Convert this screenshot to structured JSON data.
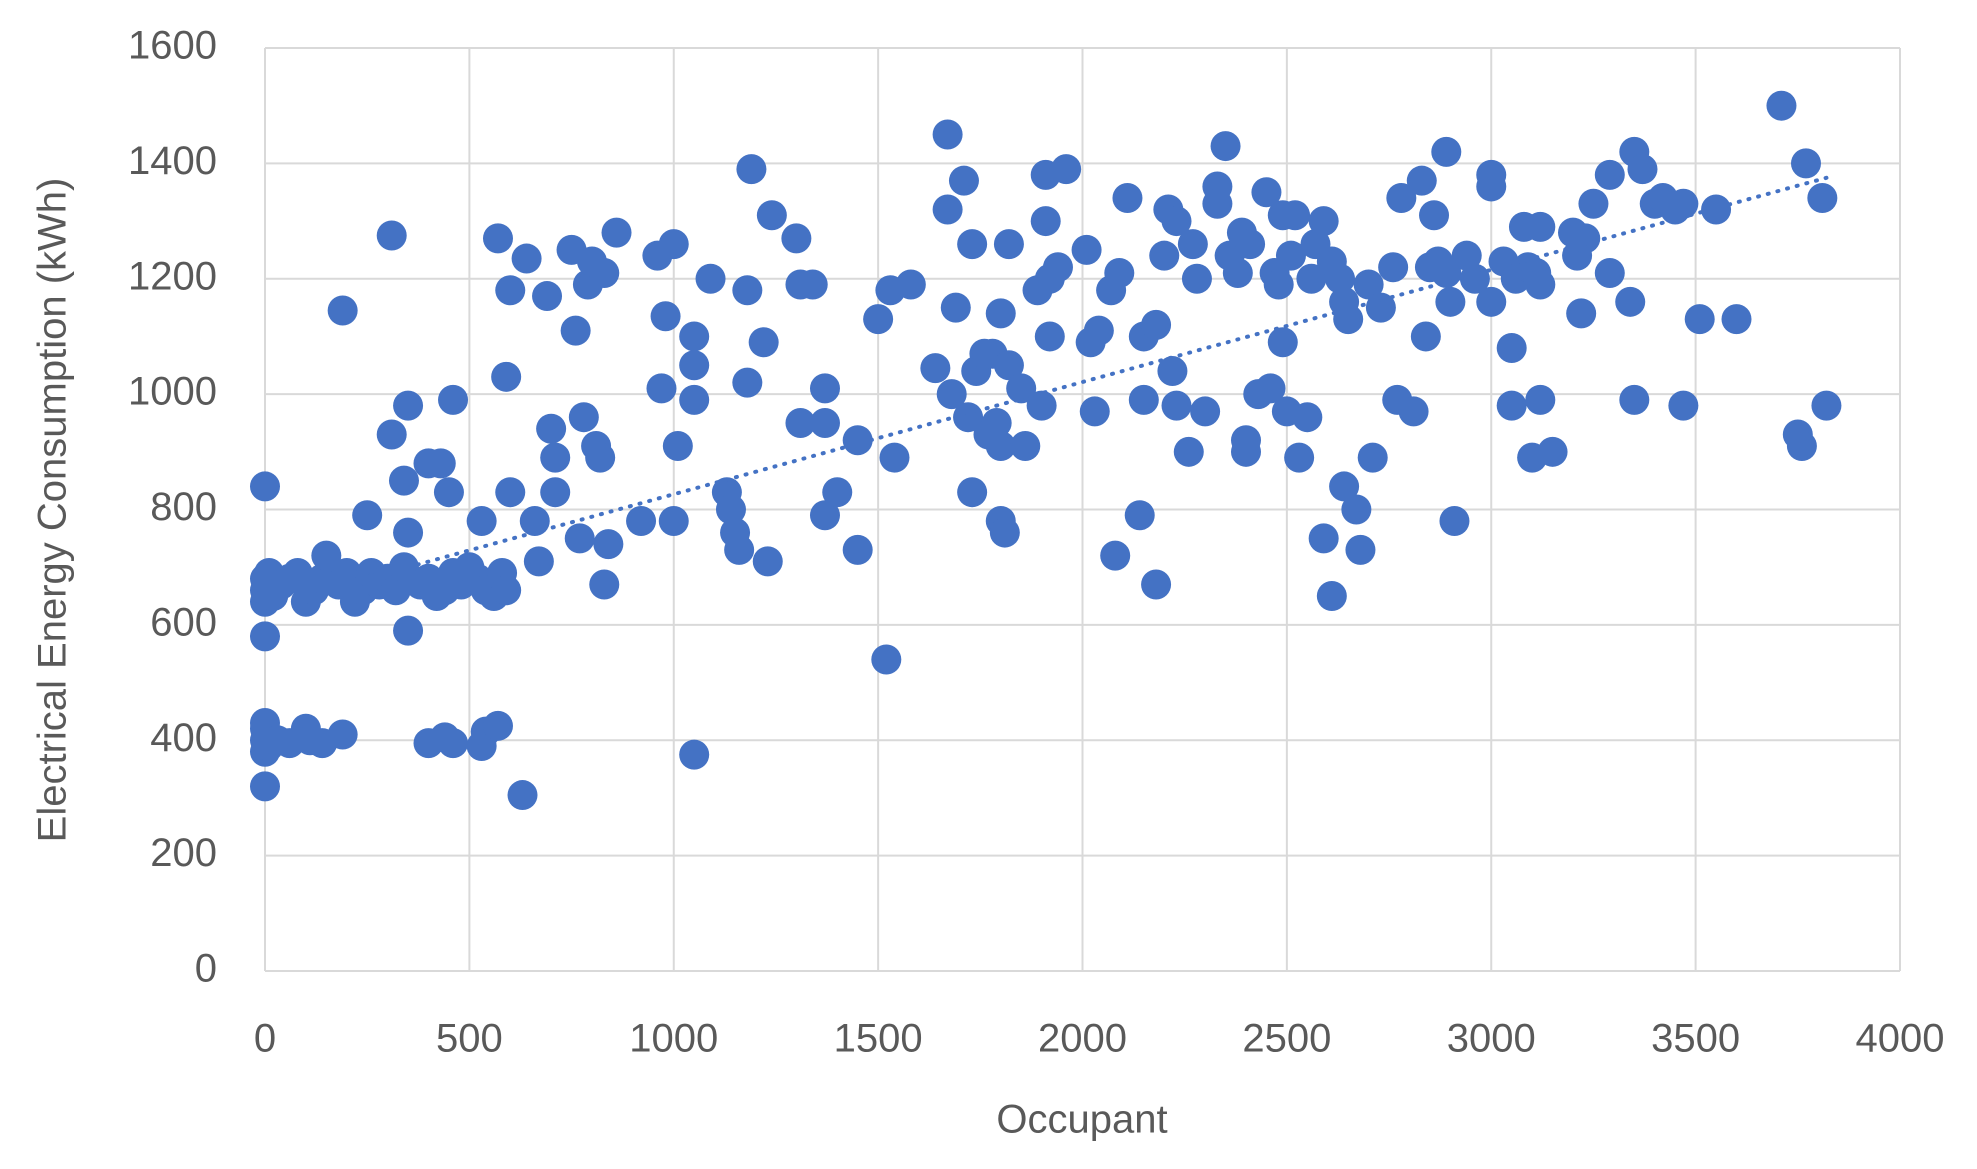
{
  "chart_data": {
    "type": "scatter",
    "x_label": "Occupant",
    "y_label": "Electrical Energy Consumption (kWh)",
    "color": "#4472c4",
    "grid": true,
    "xlim": [
      0,
      4000
    ],
    "xticks": [
      0,
      500,
      1000,
      1500,
      2000,
      2500,
      3000,
      3500,
      4000
    ],
    "ylim": [
      0,
      1600
    ],
    "yticks": [
      0,
      200,
      400,
      600,
      800,
      1000,
      1200,
      1400,
      1600
    ],
    "x": [
      0,
      0,
      0,
      0,
      0,
      10,
      30,
      60,
      100,
      110,
      140,
      190,
      400,
      440,
      460,
      530,
      540,
      570,
      630,
      1050,
      0,
      0,
      0,
      0,
      10,
      20,
      40,
      60,
      80,
      100,
      120,
      140,
      150,
      180,
      200,
      220,
      240,
      260,
      280,
      300,
      320,
      340,
      350,
      380,
      400,
      420,
      440,
      460,
      480,
      500,
      520,
      540,
      560,
      580,
      590,
      0,
      190,
      310,
      250,
      310,
      340,
      350,
      350,
      400,
      430,
      450,
      460,
      530,
      570,
      590,
      600,
      600,
      640,
      660,
      670,
      690,
      700,
      710,
      710,
      750,
      760,
      770,
      780,
      790,
      800,
      810,
      820,
      830,
      830,
      840,
      860,
      920,
      960,
      970,
      980,
      1000,
      1000,
      1010,
      1050,
      1050,
      1050,
      1090,
      1130,
      1140,
      1150,
      1160,
      1180,
      1180,
      1190,
      1220,
      1230,
      1240,
      1300,
      1310,
      1310,
      1340,
      1370,
      1370,
      1370,
      1400,
      1450,
      1450,
      1500,
      1520,
      1530,
      1540,
      1580,
      1640,
      1670,
      1670,
      1680,
      1690,
      1710,
      1720,
      1730,
      1730,
      1740,
      1760,
      1770,
      1780,
      1790,
      1800,
      1800,
      1800,
      1810,
      1820,
      1820,
      1850,
      1860,
      1890,
      1900,
      1910,
      1910,
      1920,
      1920,
      1940,
      1960,
      2010,
      2020,
      2030,
      2040,
      2070,
      2080,
      2090,
      2110,
      2140,
      2150,
      2150,
      2180,
      2180,
      2200,
      2210,
      2220,
      2230,
      2230,
      2260,
      2270,
      2280,
      2300,
      2330,
      2330,
      2350,
      2360,
      2380,
      2390,
      2400,
      2400,
      2410,
      2430,
      2450,
      2460,
      2470,
      2480,
      2490,
      2490,
      2500,
      2510,
      2520,
      2530,
      2550,
      2560,
      2570,
      2590,
      2590,
      2610,
      2610,
      2630,
      2640,
      2640,
      2650,
      2670,
      2680,
      2700,
      2710,
      2730,
      2760,
      2770,
      2780,
      2810,
      2830,
      2840,
      2850,
      2860,
      2870,
      2890,
      2890,
      2900,
      2910,
      2940,
      2960,
      3000,
      3000,
      3000,
      3030,
      3050,
      3050,
      3060,
      3080,
      3090,
      3100,
      3110,
      3120,
      3120,
      3120,
      3150,
      3200,
      3210,
      3220,
      3230,
      3250,
      3290,
      3290,
      3340,
      3350,
      3350,
      3370,
      3400,
      3420,
      3450,
      3470,
      3470,
      3510,
      3550,
      3600,
      3710,
      3750,
      3760,
      3770,
      3810,
      3820
    ],
    "values": [
      320,
      380,
      400,
      420,
      430,
      390,
      400,
      395,
      420,
      400,
      395,
      410,
      395,
      405,
      395,
      390,
      415,
      425,
      305,
      375,
      580,
      640,
      660,
      680,
      690,
      650,
      670,
      680,
      690,
      640,
      660,
      680,
      720,
      670,
      690,
      640,
      660,
      690,
      670,
      680,
      660,
      700,
      590,
      670,
      680,
      650,
      660,
      690,
      670,
      700,
      680,
      660,
      650,
      690,
      660,
      840,
      1145,
      1275,
      790,
      930,
      850,
      980,
      760,
      880,
      880,
      830,
      990,
      780,
      1270,
      1030,
      1180,
      830,
      1235,
      780,
      710,
      1170,
      940,
      890,
      830,
      1250,
      1110,
      750,
      960,
      1190,
      1230,
      910,
      890,
      1210,
      670,
      740,
      1280,
      780,
      1240,
      1010,
      1135,
      1260,
      780,
      910,
      1100,
      1050,
      990,
      1200,
      830,
      800,
      760,
      730,
      1180,
      1020,
      1390,
      1090,
      710,
      1310,
      1270,
      1190,
      950,
      1190,
      950,
      1010,
      790,
      830,
      920,
      730,
      1130,
      540,
      1180,
      890,
      1190,
      1045,
      1450,
      1320,
      1000,
      1150,
      1370,
      960,
      1260,
      830,
      1040,
      1070,
      930,
      1070,
      950,
      1140,
      910,
      780,
      760,
      1260,
      1050,
      1010,
      910,
      1180,
      980,
      1380,
      1300,
      1200,
      1100,
      1220,
      1390,
      1250,
      1090,
      970,
      1110,
      1180,
      720,
      1210,
      1340,
      790,
      990,
      1100,
      1120,
      670,
      1240,
      1320,
      1040,
      980,
      1300,
      900,
      1260,
      1200,
      970,
      1360,
      1330,
      1430,
      1240,
      1210,
      1280,
      920,
      900,
      1260,
      1000,
      1350,
      1010,
      1210,
      1190,
      1310,
      1090,
      970,
      1240,
      1310,
      890,
      960,
      1200,
      1260,
      1300,
      750,
      1230,
      650,
      1200,
      1160,
      840,
      1130,
      800,
      730,
      1190,
      890,
      1150,
      1220,
      990,
      1340,
      970,
      1370,
      1100,
      1220,
      1310,
      1230,
      1420,
      1210,
      1160,
      780,
      1240,
      1200,
      1360,
      1380,
      1160,
      1230,
      1080,
      980,
      1200,
      1290,
      1220,
      890,
      1210,
      990,
      1290,
      1190,
      900,
      1280,
      1240,
      1140,
      1270,
      1330,
      1380,
      1210,
      1160,
      1420,
      990,
      1390,
      1330,
      1340,
      1320,
      1330,
      980,
      1130,
      1320,
      1130,
      1500,
      930,
      910,
      1400,
      1340,
      980
    ],
    "trendline": {
      "x": [
        350,
        3820
      ],
      "values": [
        700,
        1375
      ]
    }
  }
}
